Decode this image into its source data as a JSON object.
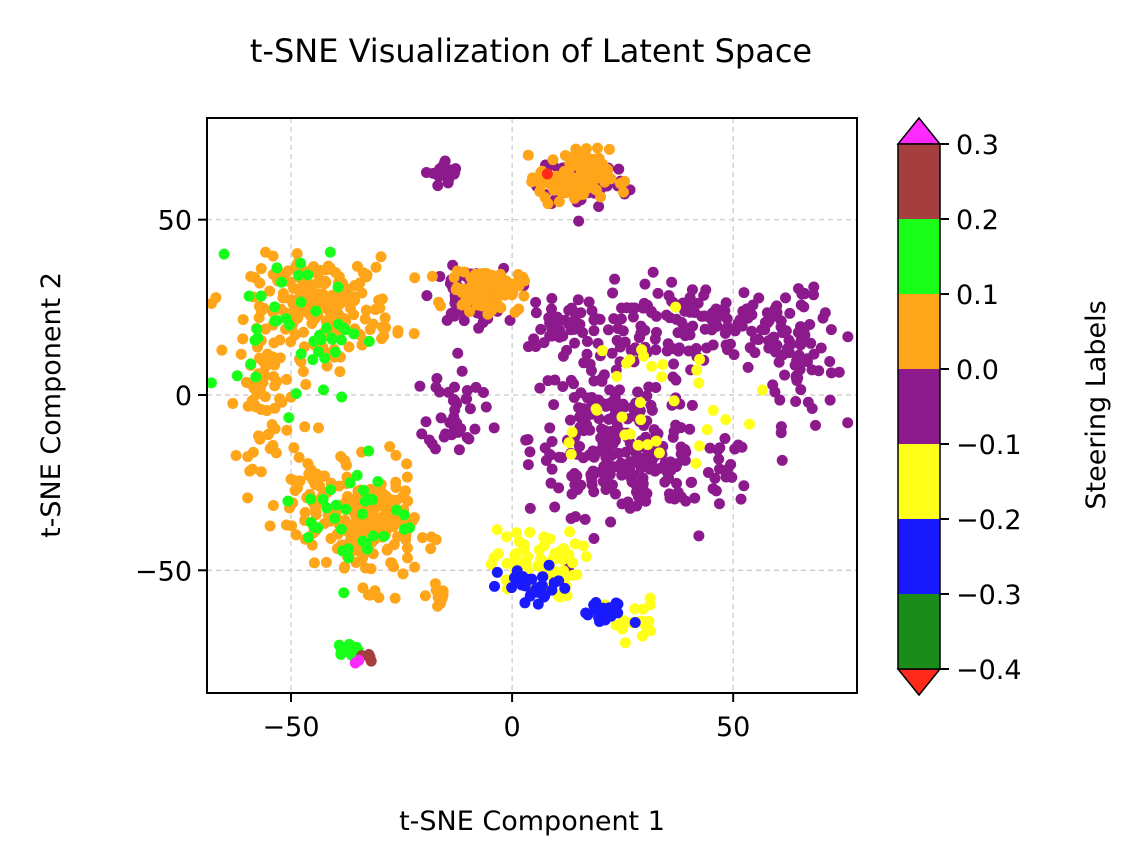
{
  "chart_data": {
    "type": "scatter",
    "title": "t-SNE Visualization of Latent Space",
    "xlabel": "t-SNE Component 1",
    "ylabel": "t-SNE Component 2",
    "xlim": [
      -69,
      78
    ],
    "ylim": [
      -85,
      79
    ],
    "xticks": [
      -50,
      0,
      50
    ],
    "yticks": [
      -50,
      0,
      50
    ],
    "grid": true,
    "colorbar": {
      "label": "Steering Labels",
      "boundaries": [
        -0.4,
        -0.3,
        -0.2,
        -0.1,
        0.0,
        0.1,
        0.2,
        0.3
      ],
      "tick_labels": [
        "−0.4",
        "−0.3",
        "−0.2",
        "−0.1",
        "0.0",
        "0.1",
        "0.2",
        "0.3"
      ],
      "band_colors": [
        "#1a8c1a",
        "#1a1aff",
        "#ffff1a",
        "#8c1a8c",
        "#ffa51a",
        "#1aff1a",
        "#a53f3f"
      ],
      "under_color": "#ff2a1a",
      "over_color": "#ff2aff",
      "extend": "both"
    },
    "clusters": [
      {
        "label": -0.05,
        "cx": 42,
        "cy": 20,
        "sx": 16,
        "sy": 6,
        "n": 160
      },
      {
        "label": -0.05,
        "cx": 65,
        "cy": 10,
        "sx": 4,
        "sy": 9,
        "n": 50
      },
      {
        "label": -0.05,
        "cx": 22,
        "cy": -12,
        "sx": 9,
        "sy": 11,
        "n": 200
      },
      {
        "label": -0.05,
        "cx": 37,
        "cy": -22,
        "sx": 10,
        "sy": 5,
        "n": 80
      },
      {
        "label": -0.05,
        "cx": 12,
        "cy": 20,
        "sx": 5,
        "sy": 3,
        "n": 30
      },
      {
        "label": -0.05,
        "cx": -10,
        "cy": 28,
        "sx": 4,
        "sy": 4,
        "n": 70
      },
      {
        "label": -0.05,
        "cx": 16,
        "cy": 61,
        "sx": 5,
        "sy": 4,
        "n": 70
      },
      {
        "label": -0.05,
        "cx": -15,
        "cy": 63,
        "sx": 1.5,
        "sy": 2,
        "n": 25
      },
      {
        "label": -0.05,
        "cx": -13,
        "cy": -4,
        "sx": 3,
        "sy": 6,
        "n": 40
      },
      {
        "label": -0.15,
        "cx": 28,
        "cy": -3,
        "sx": 14,
        "sy": 12,
        "n": 35
      },
      {
        "label": -0.15,
        "cx": 5,
        "cy": -48,
        "sx": 5,
        "sy": 5,
        "n": 60
      },
      {
        "label": -0.15,
        "cx": 27,
        "cy": -64,
        "sx": 3,
        "sy": 3,
        "n": 25
      },
      {
        "label": -0.25,
        "cx": 5,
        "cy": -55,
        "sx": 4,
        "sy": 3,
        "n": 30
      },
      {
        "label": -0.25,
        "cx": 21,
        "cy": -63,
        "sx": 3,
        "sy": 2,
        "n": 20
      },
      {
        "label": 0.05,
        "cx": -43,
        "cy": 25,
        "sx": 8,
        "sy": 7,
        "n": 200
      },
      {
        "label": 0.05,
        "cx": -56,
        "cy": 0,
        "sx": 3,
        "sy": 10,
        "n": 60
      },
      {
        "label": 0.05,
        "cx": -32,
        "cy": -38,
        "sx": 5,
        "sy": 8,
        "n": 170
      },
      {
        "label": 0.05,
        "cx": -45,
        "cy": -30,
        "sx": 4,
        "sy": 8,
        "n": 60
      },
      {
        "label": 0.05,
        "cx": -6,
        "cy": 30,
        "sx": 4,
        "sy": 3,
        "n": 110
      },
      {
        "label": 0.05,
        "cx": 14,
        "cy": 62,
        "sx": 4,
        "sy": 4,
        "n": 110
      },
      {
        "label": 0.05,
        "cx": -16,
        "cy": -57,
        "sx": 1.5,
        "sy": 1.5,
        "n": 12
      },
      {
        "label": 0.15,
        "cx": -48,
        "cy": 20,
        "sx": 7,
        "sy": 11,
        "n": 45
      },
      {
        "label": 0.15,
        "cx": -35,
        "cy": -35,
        "sx": 6,
        "sy": 9,
        "n": 35
      },
      {
        "label": 0.15,
        "cx": -37,
        "cy": -73,
        "sx": 2,
        "sy": 1.5,
        "n": 15
      },
      {
        "label": 0.25,
        "cx": -33,
        "cy": -74,
        "sx": 1,
        "sy": 1,
        "n": 5
      },
      {
        "label": 0.35,
        "cx": -35,
        "cy": -76,
        "sx": 0.6,
        "sy": 0.6,
        "n": 2
      },
      {
        "label": -0.45,
        "cx": 8,
        "cy": 63,
        "sx": 0.4,
        "sy": 0.4,
        "n": 1
      }
    ]
  }
}
